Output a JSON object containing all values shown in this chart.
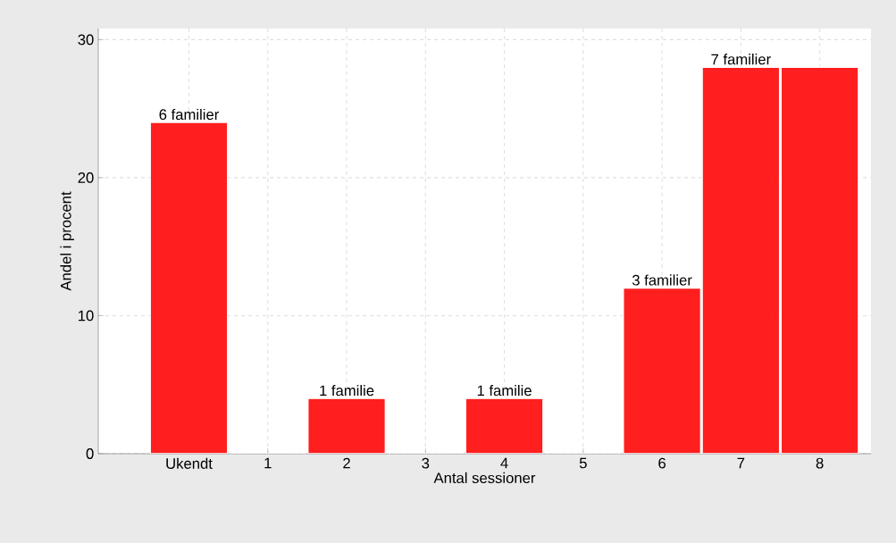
{
  "chart_data": {
    "type": "bar",
    "xlabel": "Antal sessioner",
    "ylabel": "Andel i procent",
    "categories": [
      "Ukendt",
      "1",
      "2",
      "3",
      "4",
      "5",
      "6",
      "7",
      "8"
    ],
    "values": [
      24,
      0,
      4,
      0,
      4,
      0,
      12,
      28,
      28
    ],
    "annotations": [
      {
        "text": "6 familier",
        "x": "Ukendt",
        "y": 24
      },
      {
        "text": "1 familie",
        "x": "2",
        "y": 4
      },
      {
        "text": "1 familie",
        "x": "4",
        "y": 4
      },
      {
        "text": "3 familier",
        "x": "6",
        "y": 12
      },
      {
        "text": "7 familier",
        "x": "7",
        "y": 28
      }
    ],
    "color": "#ff1f1f",
    "ylim": [
      0,
      30.8
    ],
    "yticks": [
      0,
      10,
      20,
      30
    ],
    "grid": true
  }
}
